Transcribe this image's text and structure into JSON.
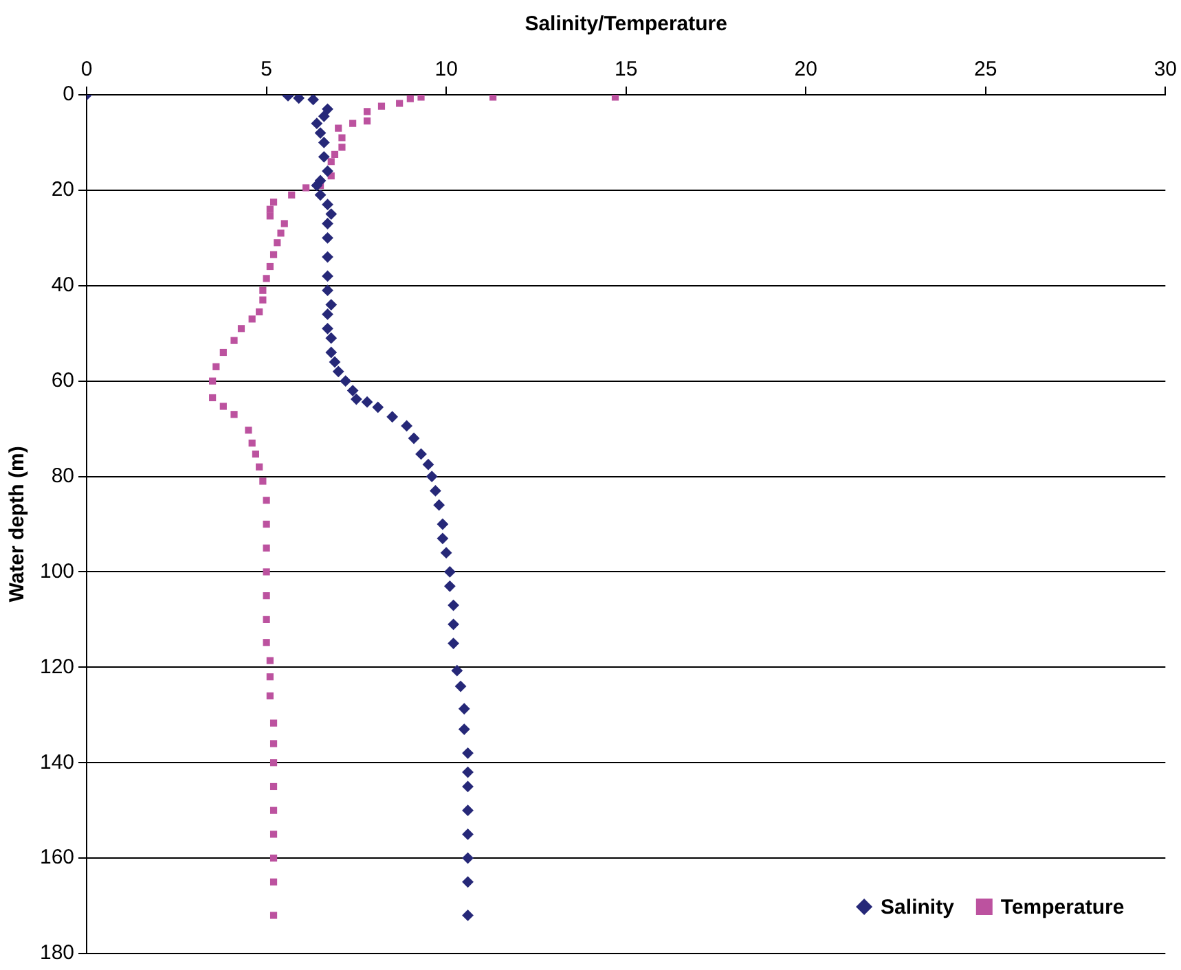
{
  "chart_data": {
    "type": "scatter",
    "xlabel": "Salinity/Temperature",
    "ylabel": "Water depth (m)",
    "xlim": [
      0,
      30
    ],
    "xticks": [
      0,
      5,
      10,
      15,
      20,
      25,
      30
    ],
    "ylim": [
      180,
      0
    ],
    "yticks": [
      0,
      20,
      40,
      60,
      80,
      100,
      120,
      140,
      160,
      180
    ],
    "grid": "y",
    "legend": "bottom right",
    "series": [
      {
        "name": "Salinity",
        "color": "#262878",
        "marker": "diamond",
        "x": [
          0,
          5.6,
          5.9,
          6.3,
          6.7,
          6.6,
          6.4,
          6.5,
          6.6,
          6.6,
          6.7,
          6.5,
          6.4,
          6.5,
          6.7,
          6.8,
          6.7,
          6.7,
          6.7,
          6.7,
          6.7,
          6.8,
          6.7,
          6.7,
          6.8,
          6.8,
          6.9,
          7.0,
          7.2,
          7.4,
          7.5,
          7.8,
          8.1,
          8.5,
          8.9,
          9.1,
          9.3,
          9.5,
          9.6,
          9.7,
          9.8,
          9.9,
          9.9,
          10.0,
          10.1,
          10.1,
          10.2,
          10.2,
          10.2,
          10.3,
          10.4,
          10.5,
          10.5,
          10.6,
          10.6,
          10.6,
          10.6,
          10.6,
          10.6,
          10.6,
          10.6
        ],
        "values": [
          0,
          0.2,
          0.7,
          1,
          3,
          4.5,
          6,
          8,
          10,
          13,
          16,
          18,
          19,
          21,
          23,
          25,
          27,
          30,
          34,
          38,
          41,
          44,
          46,
          49,
          51,
          54,
          56,
          58,
          60,
          62,
          63.8,
          64.4,
          65.5,
          67.5,
          69.4,
          72,
          75.3,
          77.5,
          80,
          83,
          86,
          90,
          93,
          96,
          100,
          103,
          107,
          111,
          115,
          120.7,
          124,
          128.7,
          133,
          138,
          142,
          145,
          150,
          155,
          160,
          165,
          172
        ]
      },
      {
        "name": "Temperature",
        "color": "#bc529f",
        "marker": "square",
        "x": [
          14.7,
          11.3,
          9.3,
          9.0,
          8.7,
          8.2,
          7.8,
          7.8,
          7.4,
          7.0,
          7.1,
          7.1,
          6.9,
          6.8,
          6.8,
          6.5,
          6.1,
          5.7,
          5.2,
          5.1,
          5.1,
          5.5,
          5.4,
          5.3,
          5.2,
          5.1,
          5.0,
          4.9,
          4.9,
          4.8,
          4.6,
          4.3,
          4.1,
          3.8,
          3.6,
          3.5,
          3.5,
          3.8,
          4.1,
          4.5,
          4.6,
          4.7,
          4.8,
          4.9,
          5.0,
          5.0,
          5.0,
          5.0,
          5.0,
          5.0,
          5.0,
          5.1,
          5.1,
          5.1,
          5.2,
          5.2,
          5.2,
          5.2,
          5.2,
          5.2,
          5.2,
          5.2,
          5.2
        ],
        "values": [
          0.5,
          0.5,
          0.5,
          0.8,
          1.8,
          2.4,
          3.5,
          5.5,
          6,
          7,
          9,
          11,
          12.5,
          14,
          17,
          19,
          19.5,
          21,
          22.5,
          24,
          25.4,
          27,
          29,
          31,
          33.5,
          36,
          38.5,
          41,
          43,
          45.5,
          47,
          49,
          51.5,
          54,
          57,
          60,
          63.5,
          65.3,
          67,
          70.3,
          73,
          75.3,
          78,
          81,
          85,
          90,
          95,
          100,
          105,
          110,
          114.8,
          118.6,
          122,
          126,
          131.7,
          136,
          140,
          145,
          150,
          155,
          160,
          165,
          172
        ]
      }
    ]
  }
}
